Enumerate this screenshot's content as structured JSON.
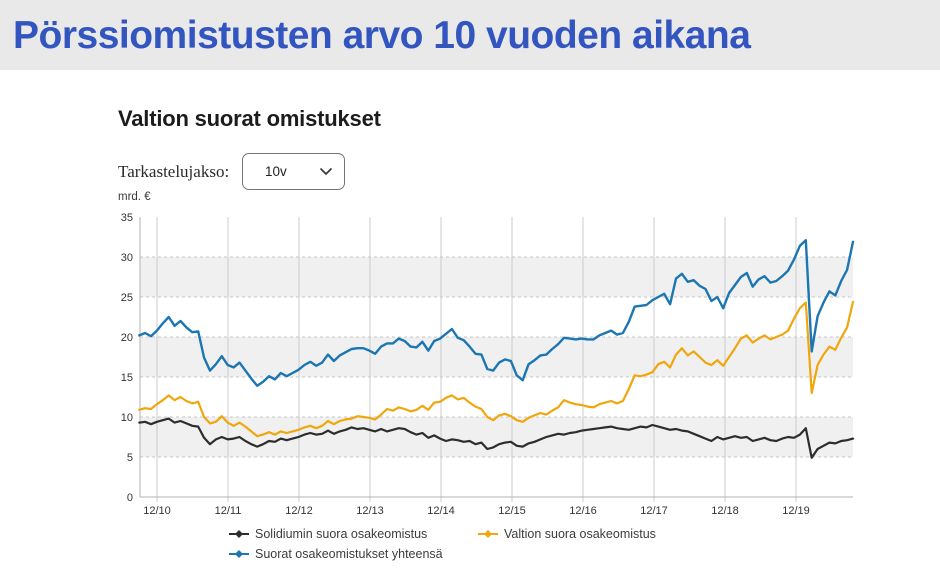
{
  "page": {
    "title": "Pörssiomistusten arvo 10 vuoden aikana"
  },
  "controls": {
    "period_label": "Tarkastelujakso:",
    "period_value": "10v"
  },
  "colors": {
    "title_blue": "#3355c0",
    "title_bar_bg": "#e9e9e9",
    "band_gray": "#f0f0f0",
    "vertical_grid": "#cccccc",
    "dashed_grid": "#c6c6c6",
    "axis_line": "#b3b3b3",
    "axis_text": "#333333"
  },
  "chart_data": {
    "type": "line",
    "title": "Valtion suorat omistukset",
    "ylabel": "mrd. €",
    "xlabel": "",
    "ylim": [
      0,
      35
    ],
    "y_ticks": [
      0,
      5,
      10,
      15,
      20,
      25,
      30,
      35
    ],
    "x_tick_labels": [
      "12/10",
      "12/11",
      "12/12",
      "12/13",
      "12/14",
      "12/15",
      "12/16",
      "12/17",
      "12/18",
      "12/19"
    ],
    "shaded_value_bands": [
      [
        5,
        10
      ],
      [
        15,
        20
      ],
      [
        25,
        30
      ]
    ],
    "grid": "vertical solid year lines, horizontal dashed lines every 5, alternating gray bands",
    "legend_position": "bottom",
    "x_monthly_from": "2010-09",
    "x_monthly_to": "2020-10",
    "series": [
      {
        "name": "Solidiumin suora osakeomistus",
        "color": "#2d2d2d",
        "values": [
          9.3,
          9.4,
          9.1,
          9.4,
          9.6,
          9.8,
          9.3,
          9.5,
          9.2,
          8.9,
          8.8,
          7.4,
          6.6,
          7.2,
          7.5,
          7.2,
          7.3,
          7.5,
          7.0,
          6.6,
          6.3,
          6.6,
          7.0,
          6.9,
          7.3,
          7.1,
          7.3,
          7.5,
          7.8,
          8.0,
          7.8,
          7.9,
          8.3,
          7.9,
          8.2,
          8.4,
          8.7,
          8.5,
          8.6,
          8.4,
          8.2,
          8.5,
          8.2,
          8.4,
          8.6,
          8.5,
          8.1,
          7.8,
          8.0,
          7.4,
          7.7,
          7.3,
          7.0,
          7.2,
          7.1,
          6.9,
          7.0,
          6.6,
          6.8,
          6.0,
          6.2,
          6.6,
          6.8,
          6.9,
          6.4,
          6.3,
          6.7,
          6.9,
          7.2,
          7.5,
          7.7,
          7.9,
          7.8,
          8.0,
          8.1,
          8.3,
          8.4,
          8.5,
          8.6,
          8.7,
          8.8,
          8.6,
          8.5,
          8.4,
          8.6,
          8.8,
          8.7,
          9.0,
          8.8,
          8.6,
          8.4,
          8.5,
          8.3,
          8.2,
          7.9,
          7.6,
          7.3,
          7.0,
          7.5,
          7.2,
          7.4,
          7.6,
          7.4,
          7.5,
          7.0,
          7.2,
          7.4,
          7.1,
          7.0,
          7.3,
          7.5,
          7.4,
          7.8,
          8.6,
          4.9,
          6.0,
          6.4,
          6.8,
          6.7,
          7.0,
          7.1,
          7.3
        ]
      },
      {
        "name": "Valtion suora osakeomistus",
        "color": "#f0a60d",
        "values": [
          10.9,
          11.1,
          11.0,
          11.6,
          12.1,
          12.7,
          12.1,
          12.5,
          12.0,
          11.7,
          11.9,
          10.0,
          9.2,
          9.4,
          10.1,
          9.3,
          8.9,
          9.3,
          8.8,
          8.2,
          7.6,
          7.8,
          8.1,
          7.8,
          8.2,
          8.0,
          8.2,
          8.4,
          8.7,
          8.9,
          8.6,
          8.9,
          9.5,
          9.1,
          9.5,
          9.7,
          9.8,
          10.1,
          10.0,
          9.9,
          9.7,
          10.3,
          11.0,
          10.8,
          11.2,
          11.0,
          10.7,
          10.9,
          11.4,
          10.9,
          11.8,
          11.9,
          12.4,
          12.7,
          12.2,
          12.4,
          11.8,
          11.3,
          11.0,
          10.0,
          9.6,
          10.2,
          10.4,
          10.1,
          9.6,
          9.4,
          9.9,
          10.2,
          10.5,
          10.3,
          10.8,
          11.2,
          12.1,
          11.8,
          11.6,
          11.5,
          11.3,
          11.2,
          11.6,
          11.8,
          12.0,
          11.7,
          12.0,
          13.5,
          15.2,
          15.1,
          15.3,
          15.6,
          16.6,
          16.9,
          16.2,
          17.8,
          18.6,
          17.7,
          18.2,
          17.5,
          16.8,
          16.5,
          17.1,
          16.4,
          17.5,
          18.6,
          19.8,
          20.2,
          19.3,
          19.8,
          20.2,
          19.7,
          20.0,
          20.3,
          20.8,
          22.3,
          23.6,
          24.3,
          13.0,
          16.5,
          17.8,
          18.8,
          18.4,
          19.9,
          21.2,
          24.4
        ]
      },
      {
        "name": "Suorat osakeomistukset yhteensä",
        "color": "#1b76b1",
        "values": [
          20.2,
          20.5,
          20.1,
          20.8,
          21.7,
          22.5,
          21.4,
          22.0,
          21.2,
          20.6,
          20.7,
          17.4,
          15.8,
          16.6,
          17.6,
          16.5,
          16.2,
          16.8,
          15.8,
          14.8,
          13.9,
          14.4,
          15.1,
          14.7,
          15.5,
          15.1,
          15.5,
          15.9,
          16.5,
          16.9,
          16.4,
          16.8,
          17.8,
          17.0,
          17.7,
          18.1,
          18.5,
          18.6,
          18.6,
          18.3,
          17.9,
          18.8,
          19.2,
          19.2,
          19.8,
          19.5,
          18.8,
          18.7,
          19.4,
          18.3,
          19.5,
          19.8,
          20.4,
          21.0,
          19.9,
          19.6,
          18.8,
          17.9,
          17.8,
          16.0,
          15.8,
          16.8,
          17.2,
          17.0,
          15.2,
          14.6,
          16.6,
          17.1,
          17.7,
          17.8,
          18.5,
          19.1,
          19.9,
          19.8,
          19.7,
          19.8,
          19.7,
          19.7,
          20.2,
          20.5,
          20.8,
          20.3,
          20.5,
          21.9,
          23.8,
          23.9,
          24.0,
          24.6,
          25.0,
          25.4,
          24.1,
          27.3,
          27.9,
          26.9,
          27.1,
          26.4,
          26.0,
          24.5,
          25.0,
          23.6,
          25.5,
          26.5,
          27.5,
          28.0,
          26.3,
          27.2,
          27.6,
          26.8,
          27.0,
          27.6,
          28.3,
          29.7,
          31.4,
          32.1,
          18.2,
          22.6,
          24.3,
          25.7,
          25.2,
          27.0,
          28.4,
          31.9
        ]
      }
    ]
  }
}
